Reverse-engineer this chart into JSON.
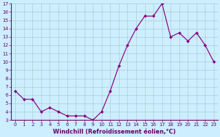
{
  "x": [
    0,
    1,
    2,
    3,
    4,
    5,
    6,
    7,
    8,
    9,
    10,
    11,
    12,
    13,
    14,
    15,
    16,
    17,
    18,
    19,
    20,
    21,
    22,
    23
  ],
  "y": [
    6.5,
    5.5,
    5.5,
    4.0,
    4.5,
    4.0,
    3.5,
    3.5,
    3.5,
    3.0,
    4.0,
    6.5,
    9.5,
    12.0,
    14.0,
    15.5,
    15.5,
    17.0,
    13.0,
    13.5,
    12.5,
    13.5,
    12.0,
    10.0
  ],
  "line_color": "#880088",
  "marker": "D",
  "marker_size": 2.0,
  "bg_color": "#cceeff",
  "grid_color": "#aacccc",
  "xlabel": "Windchill (Refroidissement éolien,°C)",
  "xlim": [
    -0.5,
    23.5
  ],
  "ylim": [
    3,
    17
  ],
  "yticks": [
    3,
    4,
    5,
    6,
    7,
    8,
    9,
    10,
    11,
    12,
    13,
    14,
    15,
    16,
    17
  ],
  "xticks": [
    0,
    1,
    2,
    3,
    4,
    5,
    6,
    7,
    8,
    9,
    10,
    11,
    12,
    13,
    14,
    15,
    16,
    17,
    18,
    19,
    20,
    21,
    22,
    23
  ],
  "tick_fontsize": 5.0,
  "xlabel_fontsize": 6.0,
  "axis_color": "#660066",
  "spine_color": "#660066",
  "linewidth": 0.9
}
